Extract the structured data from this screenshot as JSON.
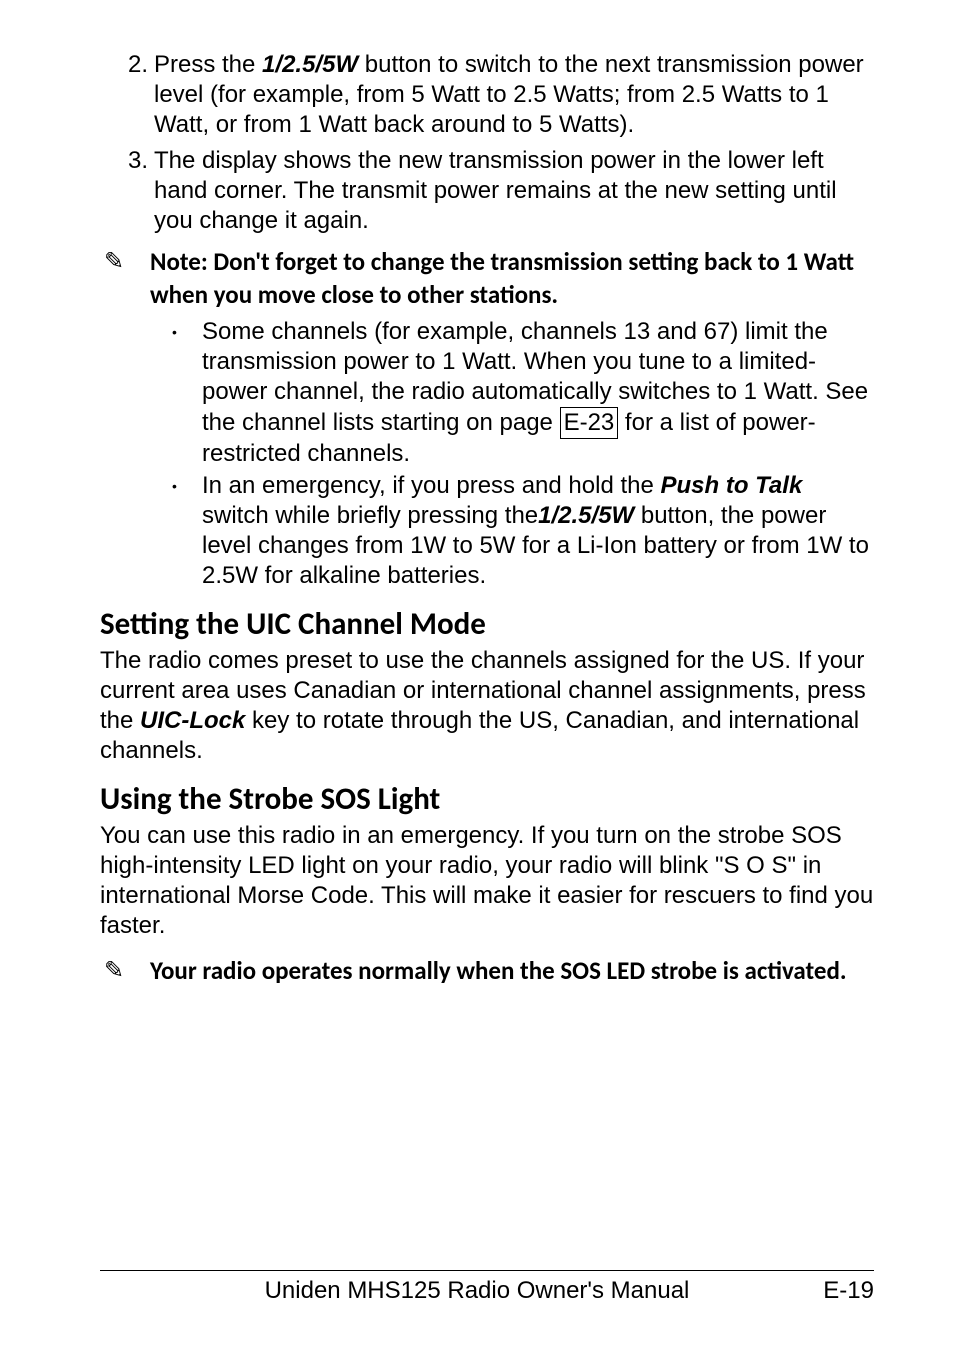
{
  "list_items": [
    {
      "num": "2.",
      "text_before": "Press the ",
      "bold_ital": "1/2.5/5W",
      "text_after": " button to switch to the next transmission power level (for example, from 5 Watt to 2.5 Watts; from 2.5 Watts to 1 Watt, or from 1 Watt back around to 5 Watts)."
    },
    {
      "num": "3.",
      "text_before": "The display shows the new transmission power in the lower left hand corner. The transmit power remains at the new setting until you change it again.",
      "bold_ital": "",
      "text_after": ""
    }
  ],
  "note1_icon": "✎",
  "note1_text": "Note: Don't forget to change the transmission setting back to 1 Watt when you move close to other stations.",
  "bullet1_a": "Some channels (for example, channels 13 and 67) limit the transmission power to 1 Watt. When you tune to a limited-power channel, the radio automatically switches to 1 Watt. See the channel lists starting on page ",
  "bullet1_box": "E-23",
  "bullet1_b": " for a list of power-restricted channels.",
  "bullet2_a": "In an emergency, if you press and hold the ",
  "bullet2_bi1": "Push to Talk",
  "bullet2_b": " switch while briefly pressing the",
  "bullet2_bi2": "1/2.5/5W",
  "bullet2_c": " button, the power level changes from 1W to 5W for a Li-Ion battery or from 1W to 2.5W for alkaline batteries.",
  "section1_title": "Setting the UIC Channel Mode",
  "section1_para_a": "The radio comes preset to use the channels assigned for the US. If your current area uses Canadian or international channel assignments, press the ",
  "section1_bi": "UIC-Lock",
  "section1_para_b": " key to rotate through the US, Canadian, and international channels.",
  "section2_title": "Using the Strobe SOS Light",
  "section2_para": "You can use this radio in an emergency. If you turn on the strobe SOS high-intensity LED light on your radio, your radio will blink \"S O S\" in international Morse Code. This will make it easier for rescuers to find you faster.",
  "note2_icon": "✎",
  "note2_text": "Your radio operates normally when the SOS LED strobe is activated.",
  "footer_title": "Uniden MHS125 Radio Owner's Manual",
  "footer_page": "E-19"
}
